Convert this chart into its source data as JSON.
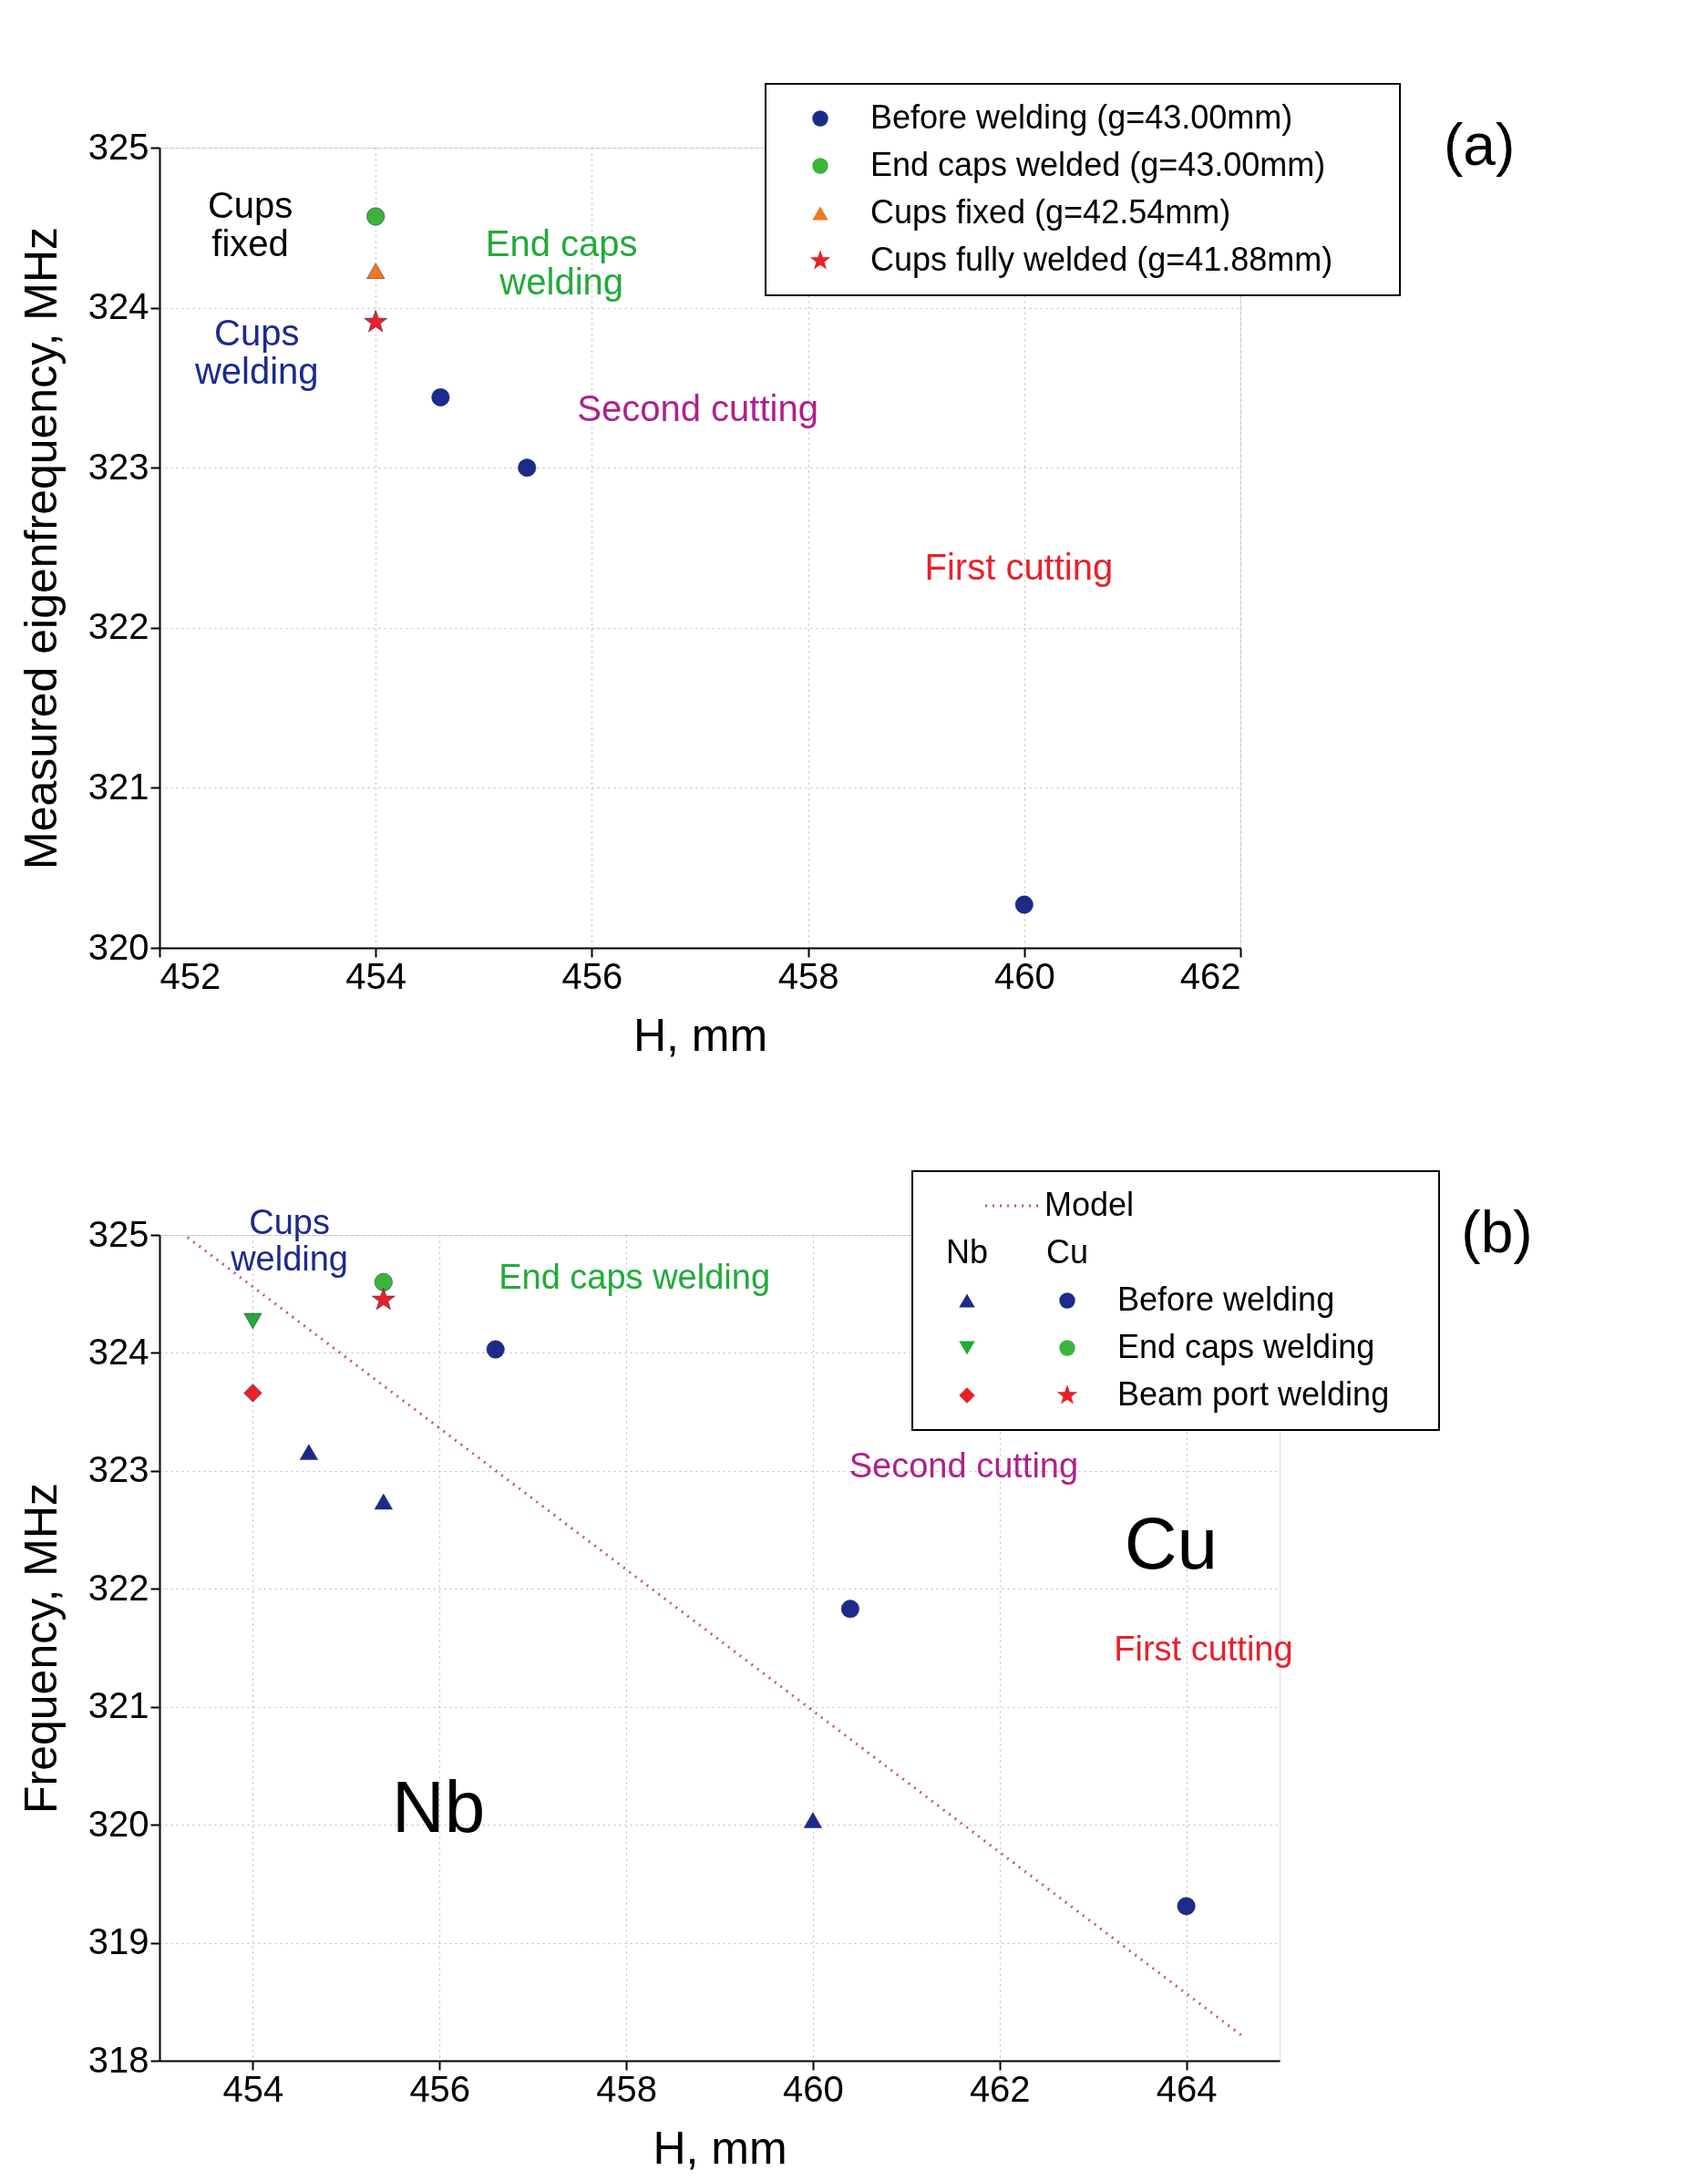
{
  "chart_data": [
    {
      "type": "scatter",
      "xlabel": "H, mm",
      "ylabel": "Measured eigenfrequency, MHz",
      "xlim": [
        452,
        462
      ],
      "xticks": [
        452,
        454,
        456,
        458,
        460,
        462
      ],
      "ylim": [
        320,
        325
      ],
      "yticks": [
        320,
        321,
        322,
        323,
        324,
        325
      ],
      "grid": true,
      "legend": "top right",
      "series": [
        {
          "name": "Before welding (g=43.00mm)",
          "color": "#1c2a8c",
          "marker": "circle",
          "x": [
            460,
            455.4,
            454.6
          ],
          "values": [
            320.27,
            323.0,
            323.44
          ]
        },
        {
          "name": "End caps welded (g=43.00mm)",
          "color": "#3cb43c",
          "marker": "circle",
          "x": [
            454
          ],
          "values": [
            324.57
          ]
        },
        {
          "name": "Cups fixed (g=42.54mm)",
          "color": "#f07820",
          "marker": "triangle",
          "x": [
            454
          ],
          "values": [
            324.23
          ]
        },
        {
          "name": "Cups fully welded (g=41.88mm)",
          "color": "#e8202a",
          "marker": "star",
          "x": [
            454
          ],
          "values": [
            323.91
          ]
        }
      ],
      "annotations": [
        "Cups\nfixed",
        "Cups\nwelding",
        "End caps\nwelding",
        "Second cutting",
        "First cutting",
        "(a)"
      ]
    },
    {
      "type": "scatter",
      "xlabel": "H, mm",
      "ylabel": "Frequency, MHz",
      "xlim": [
        453,
        465
      ],
      "xticks": [
        454,
        456,
        458,
        460,
        462,
        464
      ],
      "ylim": [
        318,
        325
      ],
      "yticks": [
        318,
        319,
        320,
        321,
        322,
        323,
        324,
        325
      ],
      "grid": true,
      "legend": "top right",
      "series": [
        {
          "color": "#1c2a8c",
          "marker": "triangle",
          "x": [
            460,
            455.4,
            454.6
          ],
          "values": [
            320.04,
            322.74,
            323.16
          ]
        },
        {
          "color": "#22aa3a",
          "marker": "triangle-down",
          "x": [
            454
          ],
          "values": [
            324.27
          ]
        },
        {
          "color": "#e8202a",
          "marker": "diamond",
          "x": [
            454
          ],
          "values": [
            323.66
          ]
        },
        {
          "name": "Before welding",
          "color": "#1c2a8c",
          "marker": "circle",
          "x": [
            464,
            460.4,
            456.6
          ],
          "values": [
            319.31,
            321.83,
            324.03
          ]
        },
        {
          "name": "End caps welding",
          "color": "#3cb43c",
          "marker": "circle",
          "x": [
            455.4
          ],
          "values": [
            324.6
          ]
        },
        {
          "name": "Beam port welding",
          "color": "#e8202a",
          "marker": "star",
          "x": [
            455.4
          ],
          "values": [
            324.45
          ]
        },
        {
          "name": "Model",
          "type": "line",
          "color": "#c8508c",
          "line_style": "dotted",
          "x": [
            453.3,
            464.6
          ],
          "values": [
            324.98,
            318.21
          ]
        }
      ],
      "annotations": [
        "Nb",
        "Cu",
        "Cups\nwelding",
        "End caps welding",
        "Second cutting",
        "First cutting",
        "Cu",
        "Nb",
        "(b)"
      ]
    }
  ]
}
